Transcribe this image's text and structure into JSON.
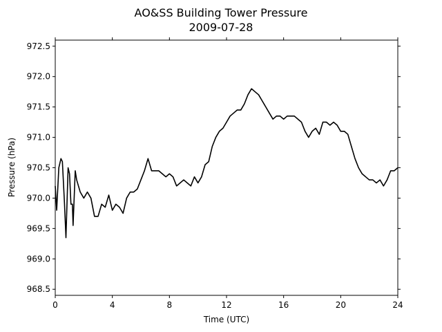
{
  "chart_data": {
    "type": "line",
    "title": "AO&SS Building Tower Pressure",
    "subtitle": "2009-07-28",
    "x_label": "Time (UTC)",
    "y_label": "Pressure (hPa)",
    "xlim": [
      0,
      24
    ],
    "xticks": [
      0,
      4,
      8,
      12,
      16,
      20,
      24
    ],
    "ylim": [
      968.4,
      972.6
    ],
    "yticks": [
      968.5,
      {
        "value": 969,
        "label": "969.0"
      },
      969.5,
      {
        "value": 970,
        "label": "970.0"
      },
      970.5,
      {
        "value": 971,
        "label": "971.0"
      },
      971.5,
      {
        "value": 972,
        "label": "972.0"
      },
      972.5
    ],
    "grid": false,
    "series": [
      {
        "color": "#000000",
        "x": [
          0,
          0.1,
          0.25,
          0.4,
          0.5,
          0.65,
          0.75,
          0.9,
          1.0,
          1.1,
          1.2,
          1.25,
          1.4,
          1.5,
          1.75,
          2.0,
          2.25,
          2.5,
          2.75,
          3.0,
          3.25,
          3.5,
          3.75,
          4.0,
          4.25,
          4.5,
          4.75,
          5.0,
          5.25,
          5.5,
          5.75,
          6.0,
          6.25,
          6.5,
          6.75,
          7.0,
          7.25,
          7.5,
          7.75,
          8.0,
          8.25,
          8.5,
          8.75,
          9.0,
          9.25,
          9.5,
          9.75,
          10.0,
          10.25,
          10.5,
          10.75,
          11.0,
          11.25,
          11.5,
          11.75,
          12.0,
          12.25,
          12.5,
          12.75,
          13.0,
          13.25,
          13.5,
          13.75,
          14.0,
          14.25,
          14.5,
          14.75,
          15.0,
          15.25,
          15.5,
          15.75,
          16.0,
          16.25,
          16.5,
          16.75,
          17.0,
          17.25,
          17.5,
          17.75,
          18.0,
          18.25,
          18.5,
          18.75,
          19.0,
          19.25,
          19.5,
          19.75,
          20.0,
          20.25,
          20.5,
          20.75,
          21.0,
          21.25,
          21.5,
          21.75,
          22.0,
          22.25,
          22.5,
          22.75,
          23.0,
          23.25,
          23.5,
          23.75,
          24.0
        ],
        "values": [
          970.2,
          969.8,
          970.5,
          970.65,
          970.6,
          969.9,
          969.35,
          970.5,
          970.4,
          969.9,
          969.9,
          969.55,
          970.45,
          970.3,
          970.1,
          970.0,
          970.1,
          970.0,
          969.7,
          969.7,
          969.9,
          969.85,
          970.05,
          969.8,
          969.9,
          969.85,
          969.75,
          970.0,
          970.1,
          970.1,
          970.15,
          970.3,
          970.45,
          970.65,
          970.45,
          970.45,
          970.45,
          970.4,
          970.35,
          970.4,
          970.35,
          970.2,
          970.25,
          970.3,
          970.25,
          970.2,
          970.35,
          970.25,
          970.35,
          970.55,
          970.6,
          970.85,
          971.0,
          971.1,
          971.15,
          971.25,
          971.35,
          971.4,
          971.45,
          971.45,
          971.55,
          971.7,
          971.8,
          971.75,
          971.7,
          971.6,
          971.5,
          971.4,
          971.3,
          971.35,
          971.35,
          971.3,
          971.35,
          971.35,
          971.35,
          971.3,
          971.25,
          971.1,
          971.0,
          971.1,
          971.15,
          971.05,
          971.25,
          971.25,
          971.2,
          971.25,
          971.2,
          971.1,
          971.1,
          971.05,
          970.85,
          970.65,
          970.5,
          970.4,
          970.35,
          970.3,
          970.3,
          970.25,
          970.3,
          970.2,
          970.3,
          970.45,
          970.45,
          970.5
        ]
      }
    ]
  }
}
